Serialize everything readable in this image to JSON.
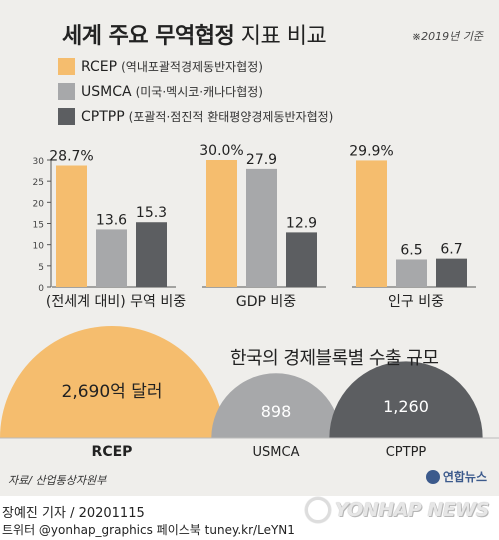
{
  "title_bold": "세계 주요 무역협정",
  "title_light": " 지표 비교",
  "note": "※2019년 기준",
  "legend": [
    {
      "name": "RCEP",
      "sub": "(역내포괄적경제동반자협정)",
      "color": "#f5bd6e"
    },
    {
      "name": "USMCA",
      "sub": "(미국·멕시코·캐나다협정)",
      "color": "#a7a8aa"
    },
    {
      "name": "CPTPP",
      "sub": "(포괄적·점진적 환태평양경제동반자협정)",
      "color": "#5c5e61"
    }
  ],
  "chart_data": [
    {
      "type": "bar",
      "title": "(전세계 대비) 무역 비중",
      "categories": [
        "RCEP",
        "USMCA",
        "CPTPP"
      ],
      "values": [
        28.7,
        13.6,
        15.3
      ],
      "value_labels": [
        "28.7%",
        "13.6",
        "15.3"
      ],
      "ylim": [
        0,
        30
      ],
      "yticks": [
        "0",
        "5",
        "10",
        "15",
        "20",
        "25",
        "30"
      ]
    },
    {
      "type": "bar",
      "title": "GDP 비중",
      "categories": [
        "RCEP",
        "USMCA",
        "CPTPP"
      ],
      "values": [
        30.0,
        27.9,
        12.9
      ],
      "value_labels": [
        "30.0%",
        "27.9",
        "12.9"
      ],
      "ylim": [
        0,
        30
      ]
    },
    {
      "type": "bar",
      "title": "인구 비중",
      "categories": [
        "RCEP",
        "USMCA",
        "CPTPP"
      ],
      "values": [
        29.9,
        6.5,
        6.7
      ],
      "value_labels": [
        "29.9%",
        "6.5",
        "6.7"
      ],
      "ylim": [
        0,
        30
      ]
    },
    {
      "type": "bar",
      "title": "한국의 경제블록별 수출 규모",
      "categories": [
        "RCEP",
        "USMCA",
        "CPTPP"
      ],
      "values": [
        2690,
        898,
        1260
      ],
      "value_labels": [
        "2,690억 달러",
        "898",
        "1,260"
      ]
    }
  ],
  "colors": {
    "rcep": "#f5bd6e",
    "usmca": "#a7a8aa",
    "cptpp": "#5c5e61"
  },
  "source": "자료/ 산업통상자원부",
  "logo_text": "연합뉴스",
  "credit_line1": "장예진 기자 / 20201115",
  "credit_line2": "트위터 @yonhap_graphics  페이스북 tuney.kr/LeYN1",
  "watermark": "YONHAP NEWS"
}
